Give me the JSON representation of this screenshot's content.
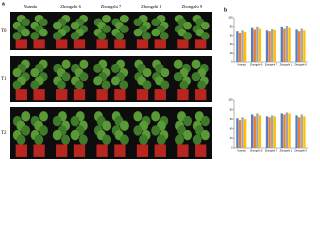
{
  "panel_labels": [
    "a",
    "b"
  ],
  "photo": {
    "columns": [
      "Yuanda",
      "Zhongzhi 6",
      "Zhongzhi 7",
      "Zhongzhi 1",
      "Zhongzhi 9"
    ],
    "rows": [
      "T0",
      "T1",
      "T2"
    ]
  },
  "chart_data": [
    {
      "type": "bar",
      "categories": [
        "Yuanda",
        "Zhongzhi 6",
        "Zhongzhi 7",
        "Zhongzhi 1",
        "Zhongzhi 9"
      ],
      "series": [
        {
          "color": "#4f7fc6",
          "values": [
            70,
            78,
            72,
            80,
            74
          ]
        },
        {
          "color": "#ed7d31",
          "values": [
            66,
            74,
            70,
            76,
            70
          ]
        },
        {
          "color": "#a5a5a5",
          "values": [
            72,
            80,
            75,
            82,
            76
          ]
        },
        {
          "color": "#ffc000",
          "values": [
            68,
            76,
            73,
            78,
            72
          ]
        }
      ],
      "ylim": [
        0,
        100
      ],
      "yticks": [
        0,
        20,
        40,
        60,
        80,
        100
      ]
    },
    {
      "type": "bar",
      "categories": [
        "Yuanda",
        "Zhongzhi 6",
        "Zhongzhi 7",
        "Zhongzhi 1",
        "Zhongzhi 9"
      ],
      "series": [
        {
          "color": "#4f7fc6",
          "values": [
            62,
            70,
            66,
            72,
            68
          ]
        },
        {
          "color": "#ed7d31",
          "values": [
            58,
            66,
            64,
            70,
            64
          ]
        },
        {
          "color": "#a5a5a5",
          "values": [
            64,
            72,
            68,
            74,
            70
          ]
        },
        {
          "color": "#ffc000",
          "values": [
            60,
            68,
            66,
            72,
            66
          ]
        }
      ],
      "ylim": [
        0,
        100
      ],
      "yticks": [
        0,
        20,
        40,
        60,
        80,
        100
      ]
    }
  ]
}
